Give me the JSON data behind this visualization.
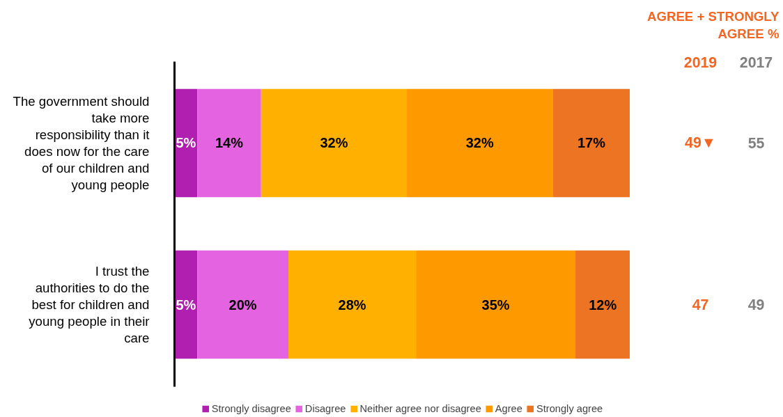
{
  "chart_data": {
    "type": "bar",
    "orientation": "horizontal",
    "stacked": true,
    "categories": [
      "The government should take more responsibility than it does now for the care of our children and young people",
      "I trust the authorities to do the best for children and young people in their care"
    ],
    "series": [
      {
        "name": "Strongly disagree",
        "color": "#b01fb0",
        "values": [
          5,
          5
        ],
        "value_labels": [
          "5%",
          "5%"
        ]
      },
      {
        "name": "Disagree",
        "color": "#e463e0",
        "values": [
          14,
          20
        ],
        "value_labels": [
          "14%",
          "20%"
        ]
      },
      {
        "name": "Neither agree nor disagree",
        "color": "#ffb000",
        "values": [
          32,
          28
        ],
        "value_labels": [
          "32%",
          "28%"
        ]
      },
      {
        "name": "Agree",
        "color": "#ff9900",
        "values": [
          32,
          35
        ],
        "value_labels": [
          "32%",
          "35%"
        ]
      },
      {
        "name": "Strongly agree",
        "color": "#ed7423",
        "values": [
          17,
          12
        ],
        "value_labels": [
          "17%",
          "12%"
        ]
      }
    ],
    "xlim": [
      0,
      100
    ],
    "tick_labels": "y",
    "grid": false,
    "legend": "bottom",
    "annotations": [
      "AGREE + STRONGLY AGREE %",
      "2019",
      "2017",
      "49▼",
      "55",
      "47",
      "49"
    ]
  }
}
